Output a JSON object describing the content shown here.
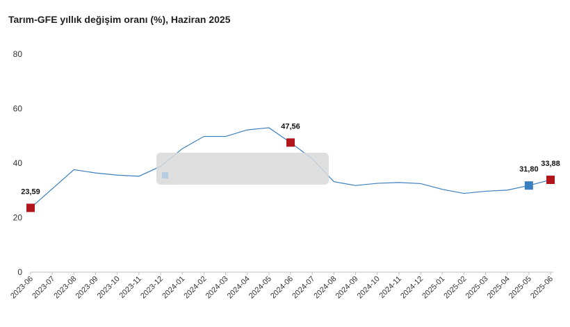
{
  "chart_data": {
    "type": "line",
    "title": "Tarım-GFE yıllık değişim oranı (%), Haziran 2025",
    "xlabel": "",
    "ylabel": "",
    "ylim": [
      0,
      80
    ],
    "yticks": [
      "0",
      "20",
      "40",
      "60",
      "80"
    ],
    "grid": false,
    "categories": [
      "2023-06",
      "2023-07",
      "2023-08",
      "2023-09",
      "2023-10",
      "2023-11",
      "2023-12",
      "2024-01",
      "2024-02",
      "2024-03",
      "2024-04",
      "2024-05",
      "2024-06",
      "2024-07",
      "2024-08",
      "2024-09",
      "2024-10",
      "2024-11",
      "2024-12",
      "2025-01",
      "2025-02",
      "2025-03",
      "2025-04",
      "2025-05",
      "2025-06"
    ],
    "series": [
      {
        "values": [
          23.59,
          30.6,
          37.6,
          36.4,
          35.6,
          35.2,
          38.8,
          45.3,
          49.8,
          49.8,
          52.2,
          53.0,
          47.56,
          41.6,
          33.2,
          31.8,
          32.6,
          32.9,
          32.5,
          30.4,
          28.9,
          29.7,
          30.1,
          31.8,
          33.88
        ],
        "color": "#3a7fbf"
      }
    ],
    "highlights": [
      {
        "index": 0,
        "label": "23,59",
        "color": "#b0161c"
      },
      {
        "index": 12,
        "label": "47,56",
        "color": "#b0161c"
      },
      {
        "index": 23,
        "label": "31,80",
        "color": "#3a7fbf"
      },
      {
        "index": 24,
        "label": "33,88",
        "color": "#b0161c"
      }
    ]
  }
}
